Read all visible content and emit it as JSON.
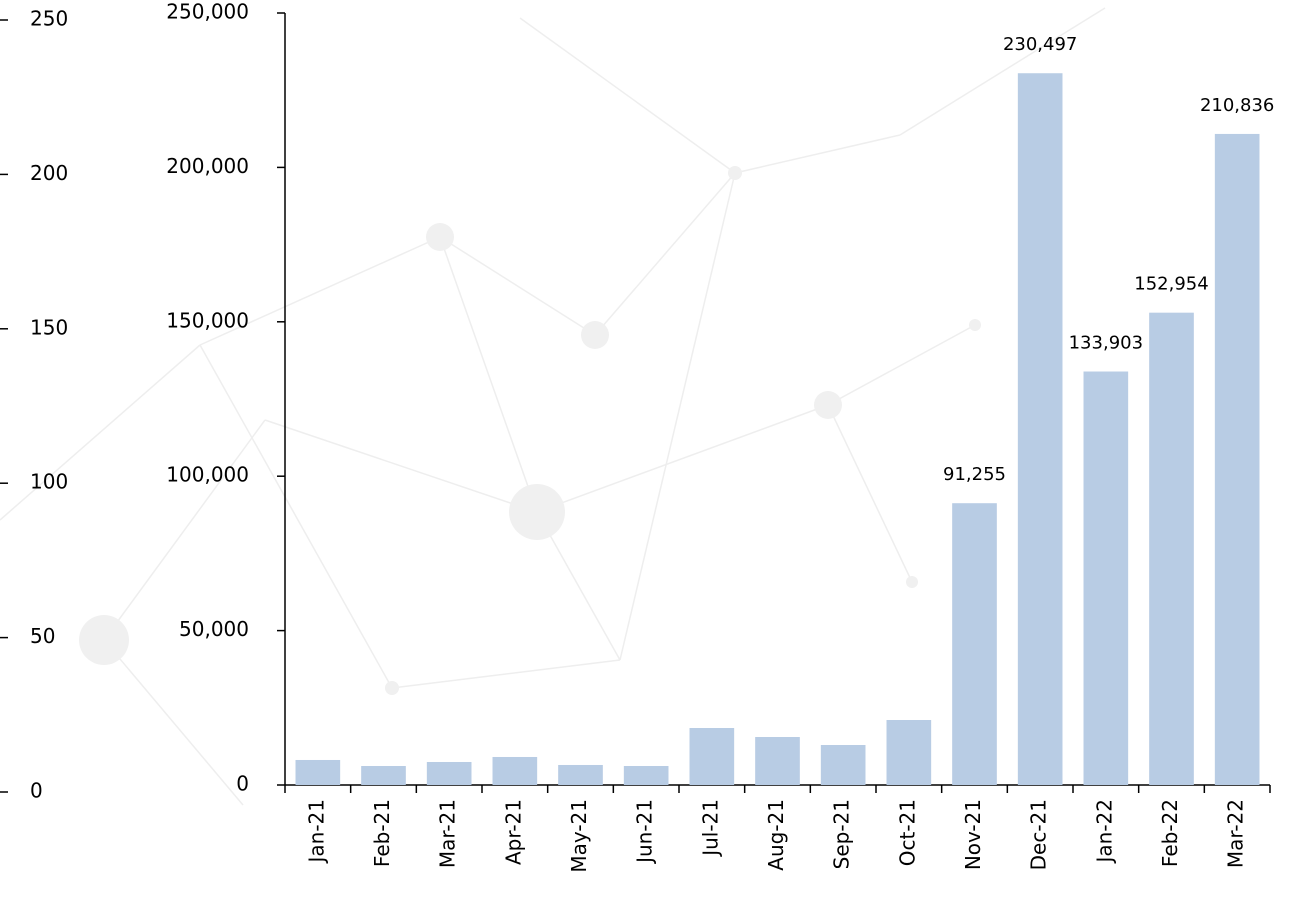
{
  "chart_data": {
    "type": "bar",
    "categories": [
      "Jan-21",
      "Feb-21",
      "Mar-21",
      "Apr-21",
      "May-21",
      "Jun-21",
      "Jul-21",
      "Aug-21",
      "Sep-21",
      "Oct-21",
      "Nov-21",
      "Dec-21",
      "Jan-22",
      "Feb-22",
      "Mar-22"
    ],
    "values": [
      8100,
      6150,
      7450,
      9070,
      6480,
      6150,
      18460,
      15540,
      12950,
      21050,
      91255,
      230497,
      133903,
      152954,
      210836
    ],
    "value_labels": [
      null,
      null,
      null,
      null,
      null,
      null,
      null,
      null,
      null,
      null,
      "91,255",
      "230,497",
      "133,903",
      "152,954",
      "210,836"
    ],
    "color": "#b8cce4",
    "ylim": [
      0,
      250000
    ],
    "yticks": [
      0,
      {
        "value": 50000,
        "label": "50,000"
      },
      {
        "value": 100000,
        "label": "100,000"
      },
      {
        "value": 150000,
        "label": "150,000"
      },
      {
        "value": 200000,
        "label": "200,000"
      },
      {
        "value": 250000,
        "label": "250,000"
      }
    ],
    "y2lim": [
      0,
      250
    ],
    "y2ticks": [
      0,
      50,
      100,
      150,
      200,
      250
    ]
  }
}
